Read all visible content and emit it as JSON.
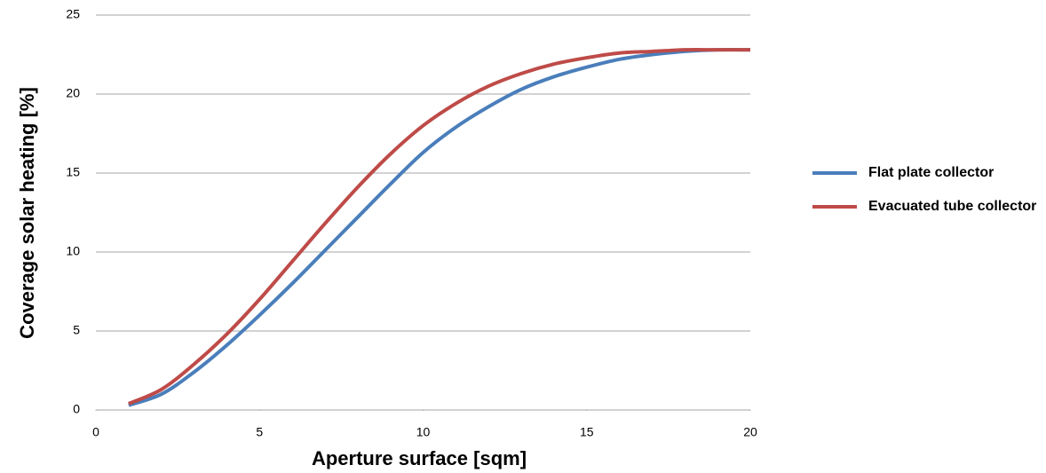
{
  "chart_data": {
    "type": "line",
    "x_label": "Aperture surface [sqm]",
    "y_label": "Coverage solar heating [%]",
    "x": [
      1,
      2,
      3,
      4,
      5,
      6,
      7,
      8,
      9,
      10,
      11,
      12,
      13,
      14,
      15,
      16,
      17,
      18,
      19,
      20
    ],
    "series": [
      {
        "name": "Flat plate collector",
        "color": "#4a7ebb",
        "values": [
          0.3,
          1.0,
          2.4,
          4.1,
          6.0,
          8.0,
          10.1,
          12.2,
          14.3,
          16.3,
          17.9,
          19.2,
          20.3,
          21.1,
          21.7,
          22.2,
          22.5,
          22.7,
          22.8,
          22.8
        ]
      },
      {
        "name": "Evacuated tube collector",
        "color": "#be4b48",
        "values": [
          0.4,
          1.3,
          2.9,
          4.8,
          7.0,
          9.4,
          11.8,
          14.1,
          16.2,
          18.0,
          19.4,
          20.5,
          21.3,
          21.9,
          22.3,
          22.6,
          22.7,
          22.8,
          22.8,
          22.8
        ]
      }
    ],
    "xlim": [
      0,
      20
    ],
    "xticks": [
      0,
      5,
      10,
      15,
      20
    ],
    "ylim": [
      0,
      25
    ],
    "yticks": [
      0,
      5,
      10,
      15,
      20,
      25
    ],
    "grid": true,
    "legend": "right"
  }
}
